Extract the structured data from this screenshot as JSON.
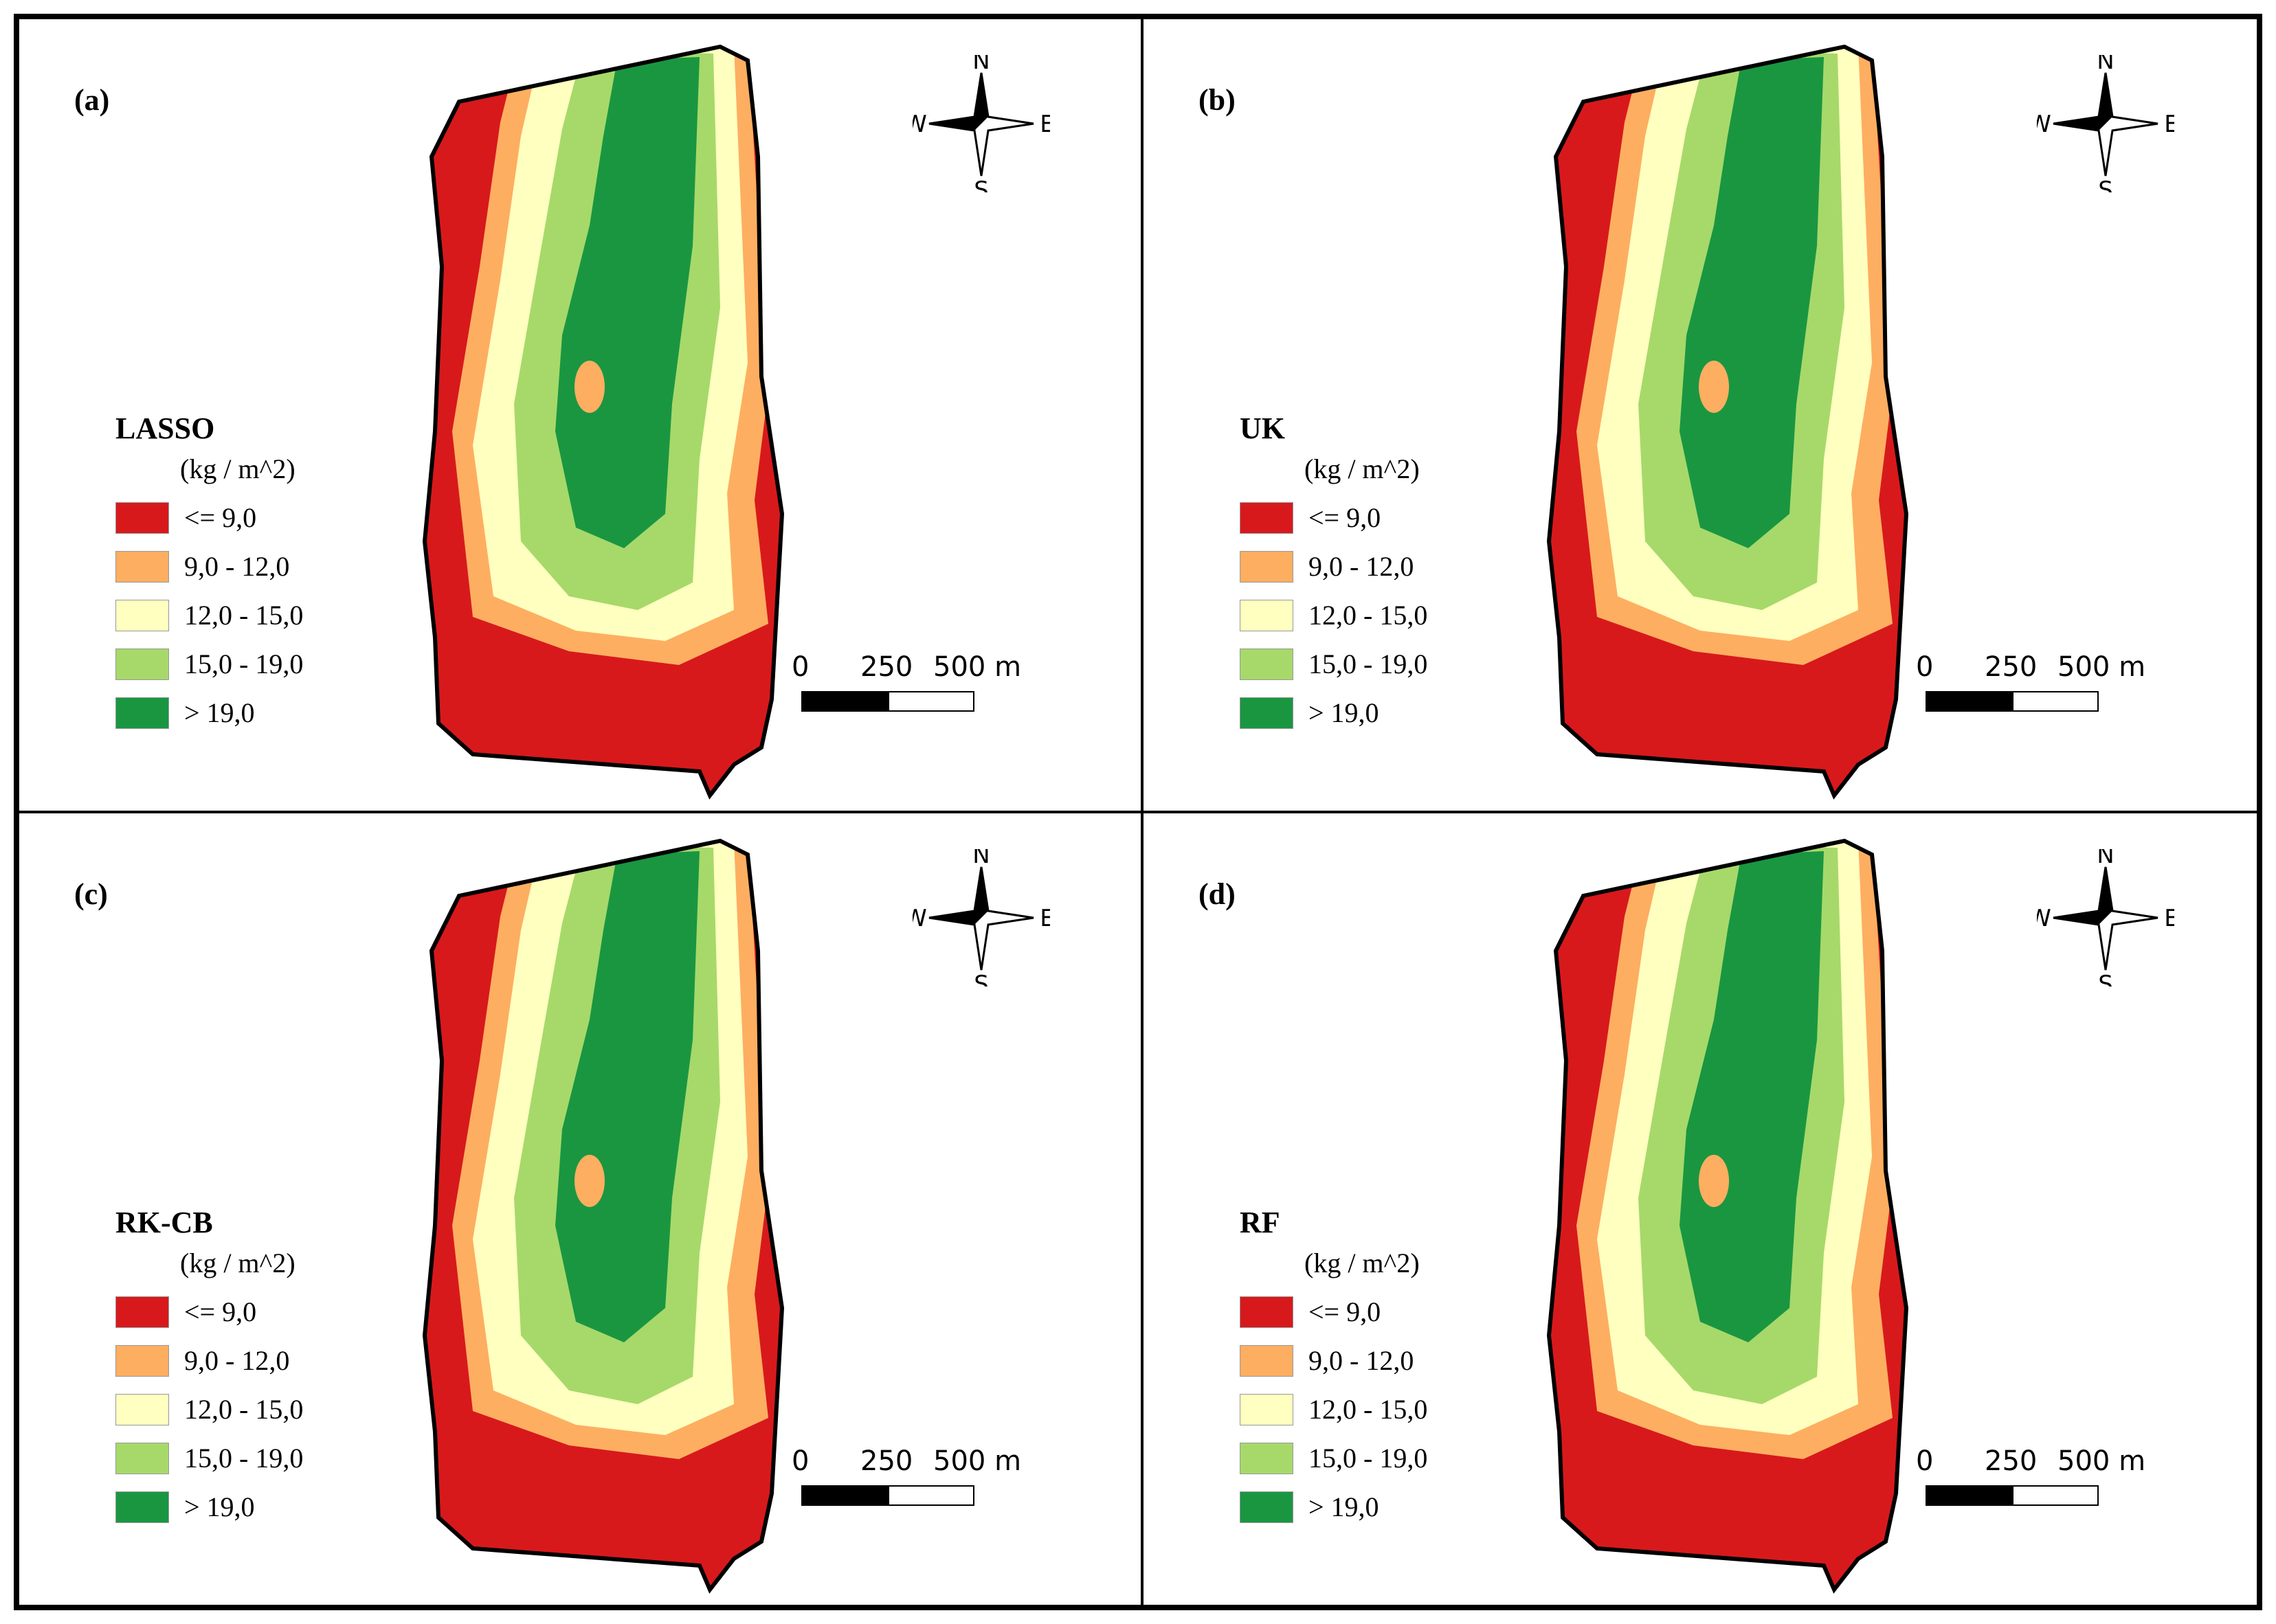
{
  "panels": [
    {
      "label": "(a)",
      "model": "LASSO"
    },
    {
      "label": "(b)",
      "model": "UK"
    },
    {
      "label": "(c)",
      "model": "RK-CB"
    },
    {
      "label": "(d)",
      "model": "RF"
    }
  ],
  "legend": {
    "unit": "(kg / m^2)",
    "classes": [
      {
        "label": "<= 9,0",
        "color": "#d7191c"
      },
      {
        "label": "9,0 - 12,0",
        "color": "#fdae61"
      },
      {
        "label": "12,0 - 15,0",
        "color": "#ffffc0"
      },
      {
        "label": "15,0 - 19,0",
        "color": "#a6d96a"
      },
      {
        "label": "> 19,0",
        "color": "#1a9641"
      }
    ]
  },
  "compass": {
    "n": "N",
    "s": "S",
    "e": "E",
    "w": "W"
  },
  "scalebar": {
    "ticks": [
      "0",
      "250",
      "500 m"
    ]
  }
}
